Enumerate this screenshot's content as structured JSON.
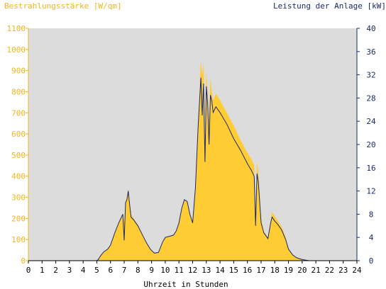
{
  "chart_data": {
    "type": "area",
    "title_left": "Bestrahlungsstärke [W/qm]",
    "title_right": "Leistung der Anlage [kW]",
    "xlabel": "Uhrzeit in Stunden",
    "xlim": [
      0,
      24
    ],
    "x_ticks": [
      "0",
      "1",
      "2",
      "3",
      "4",
      "5",
      "6",
      "7",
      "8",
      "9",
      "10",
      "11",
      "12",
      "13",
      "14",
      "15",
      "16",
      "17",
      "18",
      "19",
      "20",
      "21",
      "22",
      "23",
      "24"
    ],
    "y_left": {
      "lim": [
        0,
        1100
      ],
      "ticks": [
        "0",
        "100",
        "200",
        "300",
        "400",
        "500",
        "600",
        "700",
        "800",
        "900",
        "1000",
        "1100"
      ]
    },
    "y_right": {
      "lim": [
        0,
        40
      ],
      "ticks": [
        "0",
        "4",
        "8",
        "12",
        "16",
        "20",
        "24",
        "28",
        "32",
        "36",
        "40"
      ]
    },
    "grid": false,
    "colors": {
      "plot_bg": "#dcdcdc",
      "irradiance": "#ffcc33",
      "power": "#1a2a6c",
      "left_axis_text": "#f4b51c",
      "right_axis_text": "#1a2a6c"
    },
    "series": [
      {
        "name": "Bestrahlungsstärke [W/qm]",
        "axis": "left",
        "x": [
          0,
          5,
          5.1,
          5.3,
          5.5,
          5.8,
          6.0,
          6.3,
          6.6,
          6.9,
          7.0,
          7.1,
          7.2,
          7.3,
          7.4,
          7.5,
          7.7,
          8.0,
          8.3,
          8.6,
          8.9,
          9.2,
          9.5,
          9.8,
          10.0,
          10.3,
          10.6,
          10.8,
          11.0,
          11.2,
          11.4,
          11.6,
          11.8,
          12.0,
          12.2,
          12.4,
          12.6,
          12.7,
          12.8,
          12.9,
          13.0,
          13.1,
          13.2,
          13.3,
          13.4,
          13.5,
          13.7,
          14.0,
          14.5,
          15.0,
          15.5,
          16.0,
          16.3,
          16.5,
          16.6,
          16.7,
          16.8,
          17.0,
          17.2,
          17.5,
          17.7,
          17.8,
          18.0,
          18.2,
          18.5,
          18.8,
          19.0,
          19.3,
          19.6,
          20.0,
          20.5,
          24
        ],
        "values": [
          0,
          0,
          5,
          25,
          40,
          55,
          75,
          130,
          180,
          220,
          180,
          280,
          310,
          340,
          280,
          220,
          200,
          170,
          130,
          90,
          55,
          35,
          40,
          90,
          110,
          115,
          120,
          140,
          180,
          250,
          290,
          280,
          220,
          180,
          350,
          650,
          950,
          880,
          930,
          500,
          900,
          800,
          650,
          870,
          800,
          760,
          790,
          760,
          700,
          640,
          570,
          510,
          480,
          450,
          180,
          470,
          420,
          200,
          140,
          110,
          190,
          230,
          210,
          190,
          160,
          110,
          60,
          30,
          15,
          8,
          0,
          0
        ]
      },
      {
        "name": "Leistung der Anlage [kW]",
        "axis": "right",
        "x": [
          0,
          5,
          5.1,
          5.3,
          5.5,
          5.8,
          6.0,
          6.3,
          6.6,
          6.9,
          7.0,
          7.1,
          7.2,
          7.3,
          7.4,
          7.5,
          7.7,
          8.0,
          8.3,
          8.6,
          8.9,
          9.2,
          9.5,
          9.8,
          10.0,
          10.3,
          10.6,
          10.8,
          11.0,
          11.2,
          11.4,
          11.6,
          11.8,
          12.0,
          12.2,
          12.4,
          12.6,
          12.7,
          12.8,
          12.9,
          13.0,
          13.1,
          13.2,
          13.3,
          13.4,
          13.5,
          13.7,
          14.0,
          14.5,
          15.0,
          15.5,
          16.0,
          16.3,
          16.5,
          16.6,
          16.7,
          16.8,
          17.0,
          17.2,
          17.5,
          17.7,
          17.8,
          18.0,
          18.2,
          18.5,
          18.8,
          19.0,
          19.3,
          19.6,
          20.0,
          20.5,
          24
        ],
        "values": [
          0,
          0,
          0.2,
          0.9,
          1.5,
          2.0,
          2.7,
          4.7,
          6.5,
          8.0,
          3.5,
          10.0,
          10.5,
          12.0,
          9.5,
          7.5,
          7.0,
          6.0,
          4.6,
          3.2,
          2.0,
          1.3,
          1.4,
          3.2,
          4.0,
          4.2,
          4.4,
          5.1,
          6.5,
          9.0,
          10.5,
          10.2,
          8.0,
          6.5,
          12.5,
          23.0,
          31.5,
          25.0,
          30.5,
          17.0,
          30.0,
          27.0,
          20.0,
          28.5,
          27.5,
          25.5,
          26.5,
          25.5,
          23.5,
          21.0,
          19.0,
          16.7,
          15.5,
          14.5,
          6.0,
          15.0,
          13.5,
          6.5,
          4.8,
          3.8,
          6.5,
          7.5,
          6.8,
          6.3,
          5.3,
          3.6,
          2.0,
          1.0,
          0.5,
          0.2,
          0,
          0
        ]
      }
    ]
  }
}
